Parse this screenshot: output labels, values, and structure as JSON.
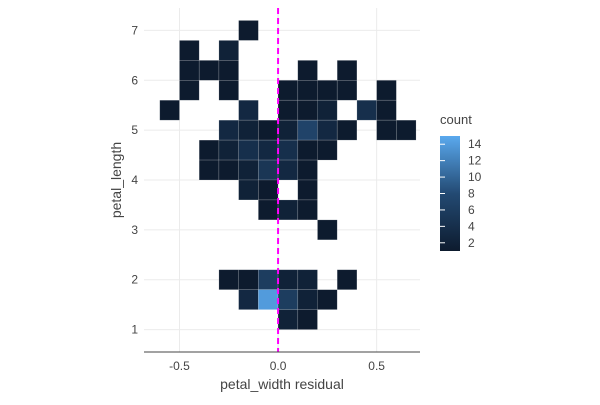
{
  "chart_data": {
    "type": "heatmap",
    "xlabel": "petal_width residual",
    "ylabel": "petal_length",
    "xlim": [
      -0.68,
      0.72
    ],
    "ylim": [
      0.55,
      7.45
    ],
    "x_bin_width": 0.1,
    "y_bin_height": 0.4,
    "x_ticks": [
      {
        "value": -0.5,
        "label": "-0.5"
      },
      {
        "value": 0,
        "label": "0.0"
      },
      {
        "value": 0.5,
        "label": "0.5"
      }
    ],
    "y_ticks": [
      {
        "value": 1,
        "label": "1"
      },
      {
        "value": 2,
        "label": "2"
      },
      {
        "value": 3,
        "label": "3"
      },
      {
        "value": 4,
        "label": "4"
      },
      {
        "value": 5,
        "label": "5"
      },
      {
        "value": 6,
        "label": "6"
      },
      {
        "value": 7,
        "label": "7"
      }
    ],
    "reference_line": {
      "x": 0,
      "color": "#ff00ff",
      "style": "dashed"
    },
    "colorscale": [
      {
        "at": 0,
        "color": "#0d1b2e"
      },
      {
        "at": 0.5,
        "color": "#234a73"
      },
      {
        "at": 1,
        "color": "#5aa9ee"
      }
    ],
    "colorbar": {
      "title": "count",
      "min": 1,
      "max": 15,
      "ticks": [
        {
          "value": 2,
          "label": "2"
        },
        {
          "value": 4,
          "label": "4"
        },
        {
          "value": 6,
          "label": "6"
        },
        {
          "value": 8,
          "label": "8"
        },
        {
          "value": 10,
          "label": "10"
        },
        {
          "value": 12,
          "label": "12"
        },
        {
          "value": 14,
          "label": "14"
        }
      ]
    },
    "grid": true,
    "legend_position": "right",
    "cells": [
      {
        "x": -0.15,
        "y": 7.0,
        "count": 1
      },
      {
        "x": -0.45,
        "y": 6.6,
        "count": 1
      },
      {
        "x": -0.25,
        "y": 6.6,
        "count": 2
      },
      {
        "x": -0.45,
        "y": 6.2,
        "count": 1
      },
      {
        "x": -0.35,
        "y": 6.2,
        "count": 1
      },
      {
        "x": -0.25,
        "y": 6.2,
        "count": 1
      },
      {
        "x": 0.15,
        "y": 6.2,
        "count": 1
      },
      {
        "x": 0.35,
        "y": 6.2,
        "count": 1
      },
      {
        "x": -0.45,
        "y": 5.8,
        "count": 1
      },
      {
        "x": -0.25,
        "y": 5.8,
        "count": 1
      },
      {
        "x": 0.05,
        "y": 5.8,
        "count": 1
      },
      {
        "x": 0.15,
        "y": 5.8,
        "count": 1
      },
      {
        "x": 0.25,
        "y": 5.8,
        "count": 1
      },
      {
        "x": 0.35,
        "y": 5.8,
        "count": 1
      },
      {
        "x": 0.55,
        "y": 5.8,
        "count": 1
      },
      {
        "x": -0.55,
        "y": 5.4,
        "count": 1
      },
      {
        "x": -0.15,
        "y": 5.4,
        "count": 3
      },
      {
        "x": 0.05,
        "y": 5.4,
        "count": 1
      },
      {
        "x": 0.15,
        "y": 5.4,
        "count": 1
      },
      {
        "x": 0.25,
        "y": 5.4,
        "count": 2
      },
      {
        "x": 0.45,
        "y": 5.4,
        "count": 4
      },
      {
        "x": 0.55,
        "y": 5.4,
        "count": 1
      },
      {
        "x": -0.25,
        "y": 5.0,
        "count": 3
      },
      {
        "x": -0.15,
        "y": 5.0,
        "count": 2
      },
      {
        "x": -0.05,
        "y": 5.0,
        "count": 1
      },
      {
        "x": 0.05,
        "y": 5.0,
        "count": 2
      },
      {
        "x": 0.15,
        "y": 5.0,
        "count": 7
      },
      {
        "x": 0.25,
        "y": 5.0,
        "count": 3
      },
      {
        "x": 0.35,
        "y": 5.0,
        "count": 1
      },
      {
        "x": 0.55,
        "y": 5.0,
        "count": 1
      },
      {
        "x": 0.65,
        "y": 5.0,
        "count": 1
      },
      {
        "x": -0.35,
        "y": 4.6,
        "count": 1
      },
      {
        "x": -0.25,
        "y": 4.6,
        "count": 2
      },
      {
        "x": -0.15,
        "y": 4.6,
        "count": 4
      },
      {
        "x": -0.05,
        "y": 4.6,
        "count": 3
      },
      {
        "x": 0.05,
        "y": 4.6,
        "count": 4
      },
      {
        "x": 0.15,
        "y": 4.6,
        "count": 1
      },
      {
        "x": 0.25,
        "y": 4.6,
        "count": 1
      },
      {
        "x": -0.35,
        "y": 4.2,
        "count": 1
      },
      {
        "x": -0.25,
        "y": 4.2,
        "count": 1
      },
      {
        "x": -0.15,
        "y": 4.2,
        "count": 2
      },
      {
        "x": -0.05,
        "y": 4.2,
        "count": 5
      },
      {
        "x": 0.05,
        "y": 4.2,
        "count": 3
      },
      {
        "x": 0.15,
        "y": 4.2,
        "count": 1
      },
      {
        "x": -0.15,
        "y": 3.8,
        "count": 2
      },
      {
        "x": -0.05,
        "y": 3.8,
        "count": 1
      },
      {
        "x": 0.15,
        "y": 3.8,
        "count": 1
      },
      {
        "x": -0.05,
        "y": 3.4,
        "count": 1
      },
      {
        "x": 0.05,
        "y": 3.4,
        "count": 2
      },
      {
        "x": 0.15,
        "y": 3.4,
        "count": 1
      },
      {
        "x": 0.25,
        "y": 3.0,
        "count": 1
      },
      {
        "x": -0.25,
        "y": 2.0,
        "count": 1
      },
      {
        "x": -0.15,
        "y": 2.0,
        "count": 1
      },
      {
        "x": -0.05,
        "y": 2.0,
        "count": 6
      },
      {
        "x": 0.05,
        "y": 2.0,
        "count": 2
      },
      {
        "x": 0.15,
        "y": 2.0,
        "count": 2
      },
      {
        "x": 0.35,
        "y": 2.0,
        "count": 1
      },
      {
        "x": -0.15,
        "y": 1.6,
        "count": 3
      },
      {
        "x": -0.05,
        "y": 1.6,
        "count": 14
      },
      {
        "x": 0.05,
        "y": 1.6,
        "count": 6
      },
      {
        "x": 0.15,
        "y": 1.6,
        "count": 2
      },
      {
        "x": 0.25,
        "y": 1.6,
        "count": 1
      },
      {
        "x": 0.05,
        "y": 1.2,
        "count": 2
      },
      {
        "x": 0.15,
        "y": 1.2,
        "count": 1
      }
    ]
  }
}
